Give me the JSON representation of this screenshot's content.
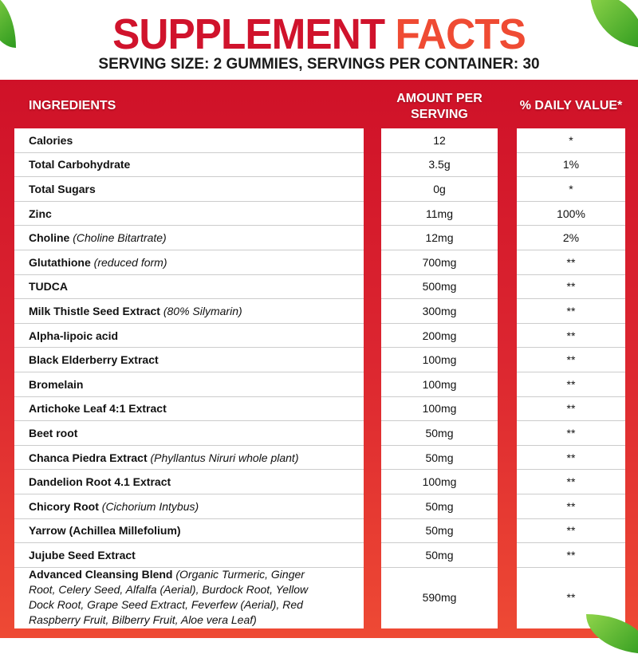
{
  "title": {
    "part1": "SUPPLEMENT ",
    "part2": "FACTS"
  },
  "serving": "SERVING SIZE: 2 GUMMIES, SERVINGS PER CONTAINER: 30",
  "headers": {
    "ingredients": "INGREDIENTS",
    "amount": "AMOUNT PER SERVING",
    "daily": "% DAILY VALUE*"
  },
  "rows": [
    {
      "name": "Calories",
      "note": "",
      "amount": "12",
      "dv": "*"
    },
    {
      "name": "Total Carbohydrate",
      "note": "",
      "amount": "3.5g",
      "dv": "1%"
    },
    {
      "name": "Total Sugars",
      "note": "",
      "amount": "0g",
      "dv": "*"
    },
    {
      "name": "Zinc",
      "note": "",
      "amount": "11mg",
      "dv": "100%"
    },
    {
      "name": "Choline",
      "note": "(Choline Bitartrate)",
      "amount": "12mg",
      "dv": "2%"
    },
    {
      "name": "Glutathione",
      "note": "(reduced form)",
      "amount": "700mg",
      "dv": "**"
    },
    {
      "name": "TUDCA",
      "note": "",
      "amount": "500mg",
      "dv": "**"
    },
    {
      "name": "Milk Thistle Seed Extract",
      "note": "(80% Silymarin)",
      "amount": "300mg",
      "dv": "**"
    },
    {
      "name": "Alpha-lipoic acid",
      "note": "",
      "amount": "200mg",
      "dv": "**"
    },
    {
      "name": "Black Elderberry Extract",
      "note": "",
      "amount": "100mg",
      "dv": "**"
    },
    {
      "name": "Bromelain",
      "note": "",
      "amount": "100mg",
      "dv": "**"
    },
    {
      "name": "Artichoke Leaf 4:1 Extract",
      "note": "",
      "amount": "100mg",
      "dv": "**"
    },
    {
      "name": "Beet root",
      "note": "",
      "amount": "50mg",
      "dv": "**"
    },
    {
      "name": "Chanca Piedra Extract",
      "note": "(Phyllantus Niruri whole plant)",
      "amount": "50mg",
      "dv": "**"
    },
    {
      "name": "Dandelion Root 4.1 Extract",
      "note": "",
      "amount": "100mg",
      "dv": "**"
    },
    {
      "name": "Chicory Root",
      "note": "(Cichorium Intybus)",
      "amount": "50mg",
      "dv": "**"
    },
    {
      "name": "Yarrow (Achillea Millefolium)",
      "note": "",
      "amount": "50mg",
      "dv": "**"
    },
    {
      "name": "Jujube Seed Extract",
      "note": "",
      "amount": "50mg",
      "dv": "**"
    },
    {
      "name": "Advanced Cleansing Blend",
      "note": "(Organic Turmeric, Ginger Root, Celery Seed, Alfalfa (Aerial), Burdock Root, Yellow Dock Root, Grape Seed Extract, Feverfew (Aerial), Red Raspberry Fruit, Bilberry Fruit, Aloe vera Leaf)",
      "amount": "590mg",
      "dv": "**"
    }
  ]
}
